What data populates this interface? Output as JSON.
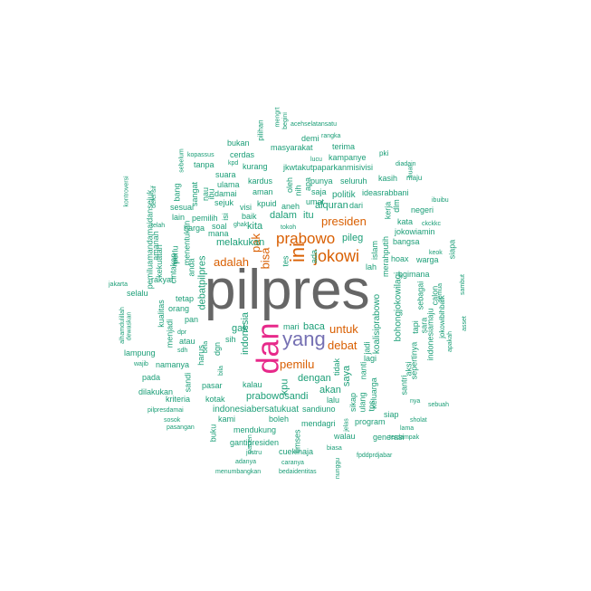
{
  "colors": {
    "orange": "#d95f02",
    "teal": "#1b9e77",
    "gray": "#666666",
    "pink": "#e7298a",
    "purple": "#7570b3"
  },
  "words": [
    {
      "text": "pilpres",
      "color": "gray"
    },
    {
      "text": "dan",
      "color": "pink"
    },
    {
      "text": "yang",
      "color": "purple"
    },
    {
      "text": "ini",
      "color": "orange"
    },
    {
      "text": "jokowi",
      "color": "orange"
    },
    {
      "text": "prabowo",
      "color": "orange"
    },
    {
      "text": "presiden",
      "color": "orange"
    },
    {
      "text": "pemilu",
      "color": "orange"
    },
    {
      "text": "untuk",
      "color": "orange"
    },
    {
      "text": "debat",
      "color": "orange"
    },
    {
      "text": "adalah",
      "color": "orange"
    },
    {
      "text": "bisa",
      "color": "orange"
    },
    {
      "text": "pak",
      "color": "orange"
    },
    {
      "text": "kita",
      "color": "teal"
    },
    {
      "text": "dalam",
      "color": "teal"
    },
    {
      "text": "itu",
      "color": "teal"
    },
    {
      "text": "pileg",
      "color": "teal"
    },
    {
      "text": "melakukan",
      "color": "teal"
    },
    {
      "text": "indonesia",
      "color": "teal"
    },
    {
      "text": "alquran",
      "color": "teal"
    },
    {
      "text": "politik",
      "color": "teal"
    },
    {
      "text": "baca",
      "color": "teal"
    },
    {
      "text": "dengan",
      "color": "teal"
    },
    {
      "text": "akan",
      "color": "teal"
    },
    {
      "text": "prabowosandi",
      "color": "teal"
    },
    {
      "text": "kpu",
      "color": "teal"
    },
    {
      "text": "gak",
      "color": "teal"
    },
    {
      "text": "saya",
      "color": "teal"
    },
    {
      "text": "debatpilpres",
      "color": "teal"
    },
    {
      "text": "koalisiprabowo",
      "color": "teal"
    },
    {
      "text": "bohongjokowilagi",
      "color": "teal"
    },
    {
      "text": "indonesiabersatukuat",
      "color": "teal"
    },
    {
      "text": "gantipresiden",
      "color": "teal"
    },
    {
      "text": "mendukung",
      "color": "teal"
    },
    {
      "text": "masyarakat",
      "color": "teal"
    },
    {
      "text": "kampanye",
      "color": "teal"
    },
    {
      "text": "jkwtakutpaparkanmisivisi",
      "color": "teal"
    },
    {
      "text": "ideasrabbani",
      "color": "teal"
    },
    {
      "text": "dilakukan",
      "color": "teal"
    },
    {
      "text": "kriteria",
      "color": "teal"
    },
    {
      "text": "pasar",
      "color": "teal"
    },
    {
      "text": "kotak",
      "color": "teal"
    },
    {
      "text": "kalau",
      "color": "teal"
    },
    {
      "text": "harus",
      "color": "teal"
    },
    {
      "text": "rakyat",
      "color": "teal"
    },
    {
      "text": "hoax",
      "color": "teal"
    },
    {
      "text": "warga",
      "color": "teal"
    },
    {
      "text": "sebagai",
      "color": "teal"
    },
    {
      "text": "calon",
      "color": "teal"
    },
    {
      "text": "negeri",
      "color": "teal"
    },
    {
      "text": "bangsa",
      "color": "teal"
    },
    {
      "text": "kasih",
      "color": "teal"
    },
    {
      "text": "seluruh",
      "color": "teal"
    },
    {
      "text": "terima",
      "color": "teal"
    },
    {
      "text": "demi",
      "color": "teal"
    },
    {
      "text": "punya",
      "color": "teal"
    },
    {
      "text": "saja",
      "color": "teal"
    },
    {
      "text": "umat",
      "color": "teal"
    },
    {
      "text": "aneh",
      "color": "teal"
    },
    {
      "text": "kurang",
      "color": "teal"
    },
    {
      "text": "cerdas",
      "color": "teal"
    },
    {
      "text": "bukan",
      "color": "teal"
    },
    {
      "text": "tanpa",
      "color": "teal"
    },
    {
      "text": "suara",
      "color": "teal"
    },
    {
      "text": "ulama",
      "color": "teal"
    },
    {
      "text": "damai",
      "color": "teal"
    },
    {
      "text": "sejuk",
      "color": "teal"
    },
    {
      "text": "kardus",
      "color": "teal"
    },
    {
      "text": "aman",
      "color": "teal"
    },
    {
      "text": "kpuid",
      "color": "teal"
    },
    {
      "text": "visi",
      "color": "teal"
    },
    {
      "text": "baik",
      "color": "teal"
    },
    {
      "text": "mana",
      "color": "teal"
    },
    {
      "text": "harga",
      "color": "teal"
    },
    {
      "text": "soal",
      "color": "teal"
    },
    {
      "text": "pemilih",
      "color": "teal"
    },
    {
      "text": "lain",
      "color": "teal"
    },
    {
      "text": "sesuai",
      "color": "teal"
    },
    {
      "text": "bang",
      "color": "teal"
    },
    {
      "text": "sangat",
      "color": "teal"
    },
    {
      "text": "ibu",
      "color": "teal"
    },
    {
      "text": "nau",
      "color": "teal"
    },
    {
      "text": "tetap",
      "color": "teal"
    },
    {
      "text": "orang",
      "color": "teal"
    },
    {
      "text": "pan",
      "color": "teal"
    },
    {
      "text": "atau",
      "color": "teal"
    },
    {
      "text": "selalu",
      "color": "teal"
    },
    {
      "text": "lampung",
      "color": "teal"
    },
    {
      "text": "namanya",
      "color": "teal"
    },
    {
      "text": "pada",
      "color": "teal"
    },
    {
      "text": "mari",
      "color": "teal"
    },
    {
      "text": "sandiuno",
      "color": "teal"
    },
    {
      "text": "walau",
      "color": "teal"
    },
    {
      "text": "generasi",
      "color": "teal"
    },
    {
      "text": "program",
      "color": "teal"
    },
    {
      "text": "mendagri",
      "color": "teal"
    },
    {
      "text": "boleh",
      "color": "teal"
    },
    {
      "text": "kami",
      "color": "teal"
    },
    {
      "text": "cuekinaja",
      "color": "teal"
    },
    {
      "text": "jokowiamin",
      "color": "teal"
    },
    {
      "text": "bgimana",
      "color": "teal"
    },
    {
      "text": "indonesiamaju",
      "color": "teal"
    },
    {
      "text": "sepertinya",
      "color": "teal"
    },
    {
      "text": "siap",
      "color": "teal"
    },
    {
      "text": "aksi",
      "color": "teal"
    },
    {
      "text": "santri",
      "color": "teal"
    },
    {
      "text": "sara",
      "color": "teal"
    },
    {
      "text": "tapi",
      "color": "teal"
    },
    {
      "text": "lagi",
      "color": "teal"
    },
    {
      "text": "nanti",
      "color": "teal"
    },
    {
      "text": "tps",
      "color": "teal"
    },
    {
      "text": "keluarga",
      "color": "teal"
    },
    {
      "text": "dari",
      "color": "teal"
    },
    {
      "text": "lah",
      "color": "teal"
    },
    {
      "text": "islam",
      "color": "teal"
    },
    {
      "text": "merahputih",
      "color": "teal"
    },
    {
      "text": "kata",
      "color": "teal"
    },
    {
      "text": "kerja",
      "color": "teal"
    },
    {
      "text": "pki",
      "color": "teal"
    },
    {
      "text": "maju",
      "color": "teal"
    },
    {
      "text": "dlm",
      "color": "teal"
    },
    {
      "text": "diadain",
      "color": "teal"
    },
    {
      "text": "buat",
      "color": "teal"
    },
    {
      "text": "ibuibu",
      "color": "teal"
    },
    {
      "text": "ckckkc",
      "color": "teal"
    },
    {
      "text": "keok",
      "color": "teal"
    },
    {
      "text": "siapa",
      "color": "teal"
    },
    {
      "text": "sambut",
      "color": "teal"
    },
    {
      "text": "semua",
      "color": "teal"
    },
    {
      "text": "jokowibihbaik",
      "color": "teal"
    },
    {
      "text": "apakah",
      "color": "teal"
    },
    {
      "text": "asset",
      "color": "teal"
    },
    {
      "text": "sebuah",
      "color": "teal"
    },
    {
      "text": "nya",
      "color": "teal"
    },
    {
      "text": "sholat",
      "color": "teal"
    },
    {
      "text": "lama",
      "color": "teal"
    },
    {
      "text": "terdampak",
      "color": "teal"
    },
    {
      "text": "fpddprdjabar",
      "color": "teal"
    },
    {
      "text": "biasa",
      "color": "teal"
    },
    {
      "text": "caranya",
      "color": "teal"
    },
    {
      "text": "bedaidentitas",
      "color": "teal"
    },
    {
      "text": "menumbangkan",
      "color": "teal"
    },
    {
      "text": "adanya",
      "color": "teal"
    },
    {
      "text": "justru",
      "color": "teal"
    },
    {
      "text": "pasien",
      "color": "teal"
    },
    {
      "text": "buku",
      "color": "teal"
    },
    {
      "text": "timses",
      "color": "teal"
    },
    {
      "text": "nunggu",
      "color": "teal"
    },
    {
      "text": "jelas",
      "color": "teal"
    },
    {
      "text": "sikap",
      "color": "teal"
    },
    {
      "text": "ulang",
      "color": "teal"
    },
    {
      "text": "lalu",
      "color": "teal"
    },
    {
      "text": "tidak",
      "color": "teal"
    },
    {
      "text": "jadi",
      "color": "teal"
    },
    {
      "text": "pilpresdamai",
      "color": "teal"
    },
    {
      "text": "sosok",
      "color": "teal"
    },
    {
      "text": "pasangan",
      "color": "teal"
    },
    {
      "text": "wajib",
      "color": "teal"
    },
    {
      "text": "sdh",
      "color": "teal"
    },
    {
      "text": "dpr",
      "color": "teal"
    },
    {
      "text": "menjadi",
      "color": "teal"
    },
    {
      "text": "kualitas",
      "color": "teal"
    },
    {
      "text": "alhamdulillah",
      "color": "teal"
    },
    {
      "text": "dewaskan",
      "color": "teal"
    },
    {
      "text": "jakarta",
      "color": "teal"
    },
    {
      "text": "amanah",
      "color": "teal"
    },
    {
      "text": "kekuatan",
      "color": "teal"
    },
    {
      "text": "cintakan",
      "color": "teal"
    },
    {
      "text": "perlu",
      "color": "teal"
    },
    {
      "text": "pemiluamandamaidansejuk",
      "color": "teal"
    },
    {
      "text": "kontroversi",
      "color": "teal"
    },
    {
      "text": "defensif",
      "color": "teal"
    },
    {
      "text": "telah",
      "color": "teal"
    },
    {
      "text": "mau",
      "color": "teal"
    },
    {
      "text": "menentukan",
      "color": "teal"
    },
    {
      "text": "anda",
      "color": "teal"
    },
    {
      "text": "sebelum",
      "color": "teal"
    },
    {
      "text": "kopassus",
      "color": "teal"
    },
    {
      "text": "kpd",
      "color": "teal"
    },
    {
      "text": "pilihan",
      "color": "teal"
    },
    {
      "text": "mengrt",
      "color": "teal"
    },
    {
      "text": "begini",
      "color": "teal"
    },
    {
      "text": "acehselatansatu",
      "color": "teal"
    },
    {
      "text": "rangka",
      "color": "teal"
    },
    {
      "text": "lucu",
      "color": "teal"
    },
    {
      "text": "oleh",
      "color": "teal"
    },
    {
      "text": "nih",
      "color": "teal"
    },
    {
      "text": "apa",
      "color": "teal"
    },
    {
      "text": "tes",
      "color": "teal"
    },
    {
      "text": "ada",
      "color": "teal"
    },
    {
      "text": "tokoh",
      "color": "teal"
    },
    {
      "text": "ghak",
      "color": "teal"
    },
    {
      "text": "isi",
      "color": "teal"
    },
    {
      "text": "bela",
      "color": "teal"
    },
    {
      "text": "bila",
      "color": "teal"
    },
    {
      "text": "dgn",
      "color": "teal"
    },
    {
      "text": "sih",
      "color": "teal"
    },
    {
      "text": "sandi",
      "color": "teal"
    },
    {
      "text": "pemerintah",
      "color": "teal"
    },
    {
      "text": "sepertinya2",
      "color": "teal"
    }
  ]
}
